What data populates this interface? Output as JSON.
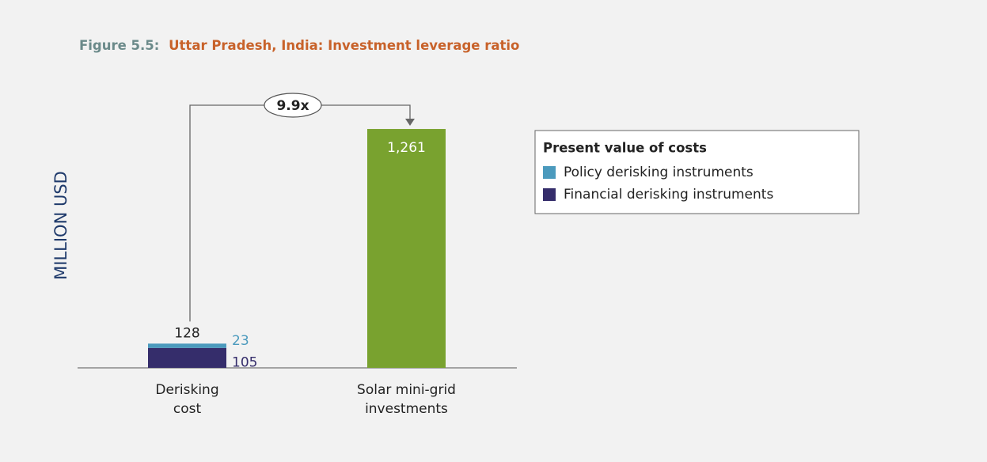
{
  "chart_data": {
    "type": "bar",
    "title_prefix": "Figure 5.5:",
    "title": "Uttar Pradesh, India: Investment leverage ratio",
    "y_label": "MILLION USD",
    "categories": [
      "Derisking cost",
      "Solar mini-grid investments"
    ],
    "values": [
      128,
      1261
    ],
    "value_labels": [
      "128",
      "1,261"
    ],
    "color": "#79a22f",
    "series": [
      {
        "name": "Policy derisking instruments",
        "color": "#4b9abd",
        "values": [
          23,
          null
        ]
      },
      {
        "name": "Financial derisking instruments",
        "color": "#352d6b",
        "values": [
          105,
          null
        ]
      }
    ],
    "legend_title": "Present value of costs",
    "annotation": "9.9x",
    "ylim": [
      0,
      1300
    ]
  }
}
